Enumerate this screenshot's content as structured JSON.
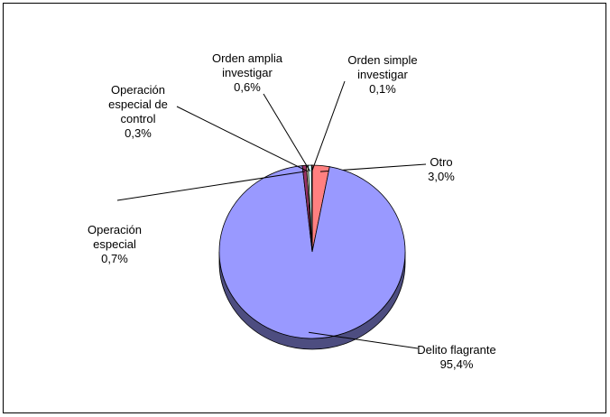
{
  "chart_data": {
    "type": "pie",
    "categories": [
      "Otro",
      "Delito flagrante",
      "Operación especial",
      "Operación especial de control",
      "Orden amplia investigar",
      "Orden simple investigar"
    ],
    "values": [
      3.0,
      95.4,
      0.7,
      0.3,
      0.6,
      0.1
    ],
    "value_labels": [
      "3,0%",
      "95,4%",
      "0,7%",
      "0,3%",
      "0,6%",
      "0,1%"
    ],
    "colors": [
      "#ff8080",
      "#9999ff",
      "#993366",
      "#ffffcc",
      "#ccffff",
      "#660066"
    ]
  }
}
